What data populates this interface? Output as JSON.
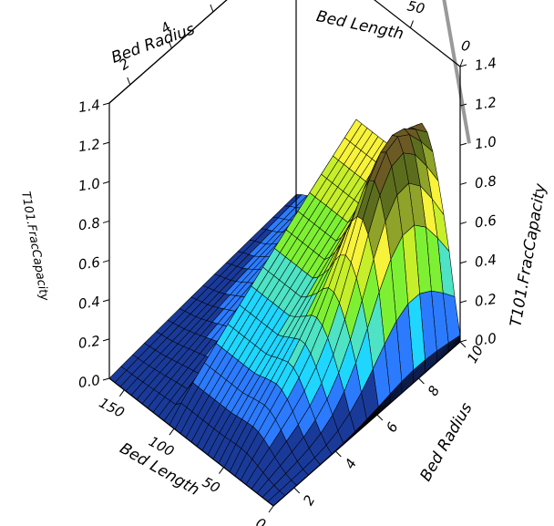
{
  "chart_data": {
    "type": "surface3d",
    "title": "",
    "x_axis": {
      "label": "Bed Length",
      "range": [
        0,
        165
      ],
      "ticks": [
        0,
        50,
        100,
        150
      ]
    },
    "y_axis": {
      "label": "Bed Radius",
      "range": [
        1,
        10
      ],
      "ticks": [
        2,
        4,
        6,
        8,
        10
      ]
    },
    "z_axis": {
      "label": "T101.FracCapacity",
      "range": [
        0,
        1.4
      ],
      "ticks": [
        0.0,
        0.2,
        0.4,
        0.6,
        0.8,
        1.0,
        1.2,
        1.4
      ]
    },
    "reference_plane": {
      "z": 1.0,
      "color": "#999999"
    },
    "grid": false,
    "colormap": [
      "#1a3a9a",
      "#2c7bff",
      "#1fd6ff",
      "#4de3c4",
      "#7ef034",
      "#c6ee2a",
      "#f7f23a",
      "#8fa32a",
      "#5c6e1e",
      "#6b5a24",
      "#8b5a26",
      "#b0502a",
      "#d0522c"
    ],
    "surface_profile": {
      "description_units": "x: Bed Length, y: Bed Radius, z: T101.FracCapacity",
      "x": [
        0,
        5,
        10,
        15,
        20,
        25,
        30,
        35,
        40,
        45,
        50,
        55,
        60,
        65,
        70,
        75,
        80,
        90,
        100,
        110,
        120,
        130,
        140,
        150,
        160,
        165
      ],
      "z_at_y10": [
        0.0,
        0.02,
        0.08,
        0.18,
        0.3,
        0.45,
        0.6,
        0.72,
        0.8,
        0.82,
        0.8,
        0.78,
        0.75,
        0.7,
        0.64,
        0.58,
        0.55,
        0.5,
        0.44,
        0.38,
        0.32,
        0.26,
        0.2,
        0.15,
        0.12,
        0.1
      ],
      "ridge_peak": {
        "x": 20,
        "y": 8,
        "z": 1.4
      }
    }
  }
}
